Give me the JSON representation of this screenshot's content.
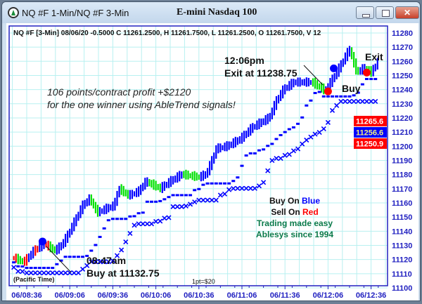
{
  "window": {
    "title": "NQ #F 1-Min/NQ #F 3-Min",
    "chart_title": "E-mini Nasdaq 100",
    "close_glyph": "✕"
  },
  "chart_data": {
    "type": "bar",
    "title": "E-mini Nasdaq 100",
    "header": "NQ #F [3-Min] 08/06/20  -0.5000 C 11261.2500, H 11261.7500, L 11261.2500, O 11261.7500, V 12",
    "ylim": [
      11100,
      11280
    ],
    "yticks": [
      11280,
      11270,
      11260,
      11250,
      11240,
      11230,
      11220,
      11210,
      11200,
      11190,
      11180,
      11170,
      11160,
      11150,
      11140,
      11130,
      11120,
      11110,
      11100
    ],
    "xticks": [
      "06/08:36",
      "06/09:06",
      "06/09:36",
      "06/10:06",
      "06/10:36",
      "06/11:06",
      "06/11:36",
      "06/12:06",
      "06/12:36"
    ],
    "grid": true,
    "price_path": [
      [
        "08:27",
        11121
      ],
      [
        "08:34",
        11118
      ],
      [
        "08:41",
        11126
      ],
      [
        "08:48",
        11131
      ],
      [
        "08:56",
        11126
      ],
      [
        "09:01",
        11131
      ],
      [
        "09:05",
        11138
      ],
      [
        "09:10",
        11148
      ],
      [
        "09:15",
        11158
      ],
      [
        "09:20",
        11163
      ],
      [
        "09:25",
        11153
      ],
      [
        "09:32",
        11156
      ],
      [
        "09:37",
        11158
      ],
      [
        "09:40",
        11170
      ],
      [
        "09:47",
        11165
      ],
      [
        "09:54",
        11168
      ],
      [
        "09:59",
        11175
      ],
      [
        "10:09",
        11170
      ],
      [
        "10:16",
        11175
      ],
      [
        "10:24",
        11180
      ],
      [
        "10:36",
        11178
      ],
      [
        "10:41",
        11180
      ],
      [
        "10:46",
        11192
      ],
      [
        "10:48",
        11198
      ],
      [
        "10:56",
        11200
      ],
      [
        "11:05",
        11205
      ],
      [
        "11:13",
        11213
      ],
      [
        "11:25",
        11220
      ],
      [
        "11:30",
        11232
      ],
      [
        "11:35",
        11240
      ],
      [
        "11:42",
        11245
      ],
      [
        "11:55",
        11245
      ],
      [
        "12:04",
        11239
      ],
      [
        "12:12",
        11252
      ],
      [
        "12:19",
        11265
      ],
      [
        "12:21",
        11268
      ],
      [
        "12:26",
        11252
      ],
      [
        "12:31",
        11255
      ],
      [
        "12:36",
        11252
      ],
      [
        "12:41",
        11260
      ]
    ],
    "signals": [
      {
        "type": "buy",
        "time": "08:47",
        "price": 11132.75
      },
      {
        "type": "exit",
        "time": "12:06",
        "price": 11238.75
      },
      {
        "type": "buy",
        "time": "12:10",
        "price": 11255
      },
      {
        "type": "exit",
        "time": "12:33",
        "price": 11252
      }
    ],
    "price_tags": [
      {
        "label": "11265.6",
        "color": "#ff0000"
      },
      {
        "label": "11256.6",
        "color": "#0000ff"
      },
      {
        "label": "11250.9",
        "color": "#ff0000"
      }
    ],
    "colors": {
      "up": "#0000ff",
      "neutral": "#00e000",
      "down": "#ff0000",
      "grid": "#b8f0f0",
      "axis": "#2020c0"
    },
    "annotations": {
      "profit1": "106 points/contract profit +$2120",
      "profit2": "for the one winner using AbleTrend signals!",
      "exit_time": "12:06pm",
      "exit_price": "Exit at 11238.75",
      "buy_label": "Buy",
      "exit_label": "Exit",
      "buy_time": "08:47am",
      "buy_price": "Buy at 11132.75",
      "timezone": "(Pacific Time)",
      "point_value": "1pt=$20",
      "legend1a": "Buy On ",
      "legend1b": "Blue",
      "legend2a": "Sell On ",
      "legend2b": "Red",
      "legend3": "Trading made easy",
      "legend4": "Ablesys since 1994"
    }
  }
}
